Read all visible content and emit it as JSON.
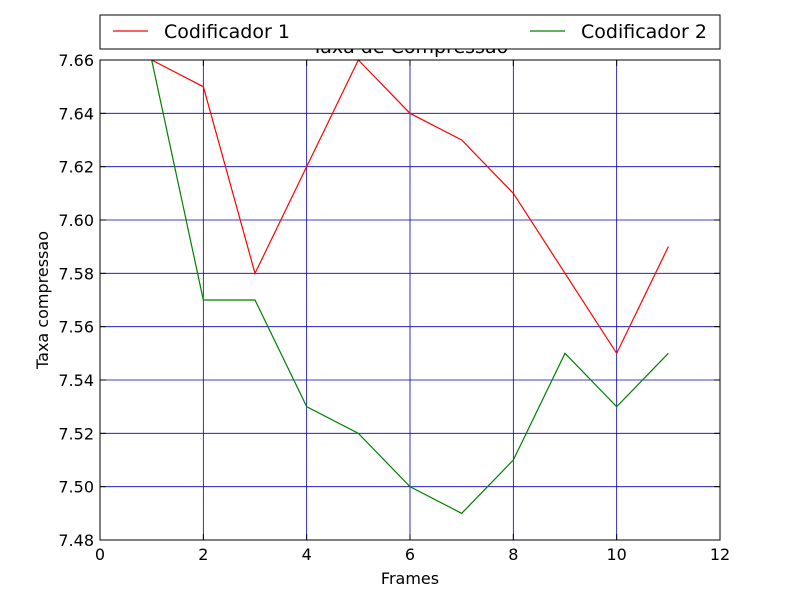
{
  "chart_data": {
    "type": "line",
    "title": "Taxa de Compressão",
    "xlabel": "Frames",
    "ylabel": "Taxa compressao",
    "xlim": [
      0,
      12
    ],
    "ylim": [
      7.48,
      7.66
    ],
    "xticks": [
      "0",
      "2",
      "4",
      "6",
      "8",
      "10",
      "12"
    ],
    "yticks": [
      "7.48",
      "7.50",
      "7.52",
      "7.54",
      "7.56",
      "7.58",
      "7.60",
      "7.62",
      "7.64",
      "7.66"
    ],
    "grid": true,
    "grid_color": "#0000b3",
    "legend_position": "top, above plot",
    "series": [
      {
        "name": "Codificador 1",
        "color": "#ff0000",
        "x": [
          1,
          2,
          3,
          4,
          5,
          6,
          7,
          8,
          9,
          10,
          11
        ],
        "y": [
          7.66,
          7.65,
          7.58,
          7.62,
          7.66,
          7.64,
          7.63,
          7.61,
          7.58,
          7.55,
          7.59
        ]
      },
      {
        "name": "Codificador 2",
        "color": "#008000",
        "x": [
          1,
          2,
          3,
          4,
          5,
          6,
          7,
          8,
          9,
          10,
          11
        ],
        "y": [
          7.66,
          7.57,
          7.57,
          7.53,
          7.52,
          7.5,
          7.49,
          7.51,
          7.55,
          7.53,
          7.55
        ]
      }
    ]
  }
}
